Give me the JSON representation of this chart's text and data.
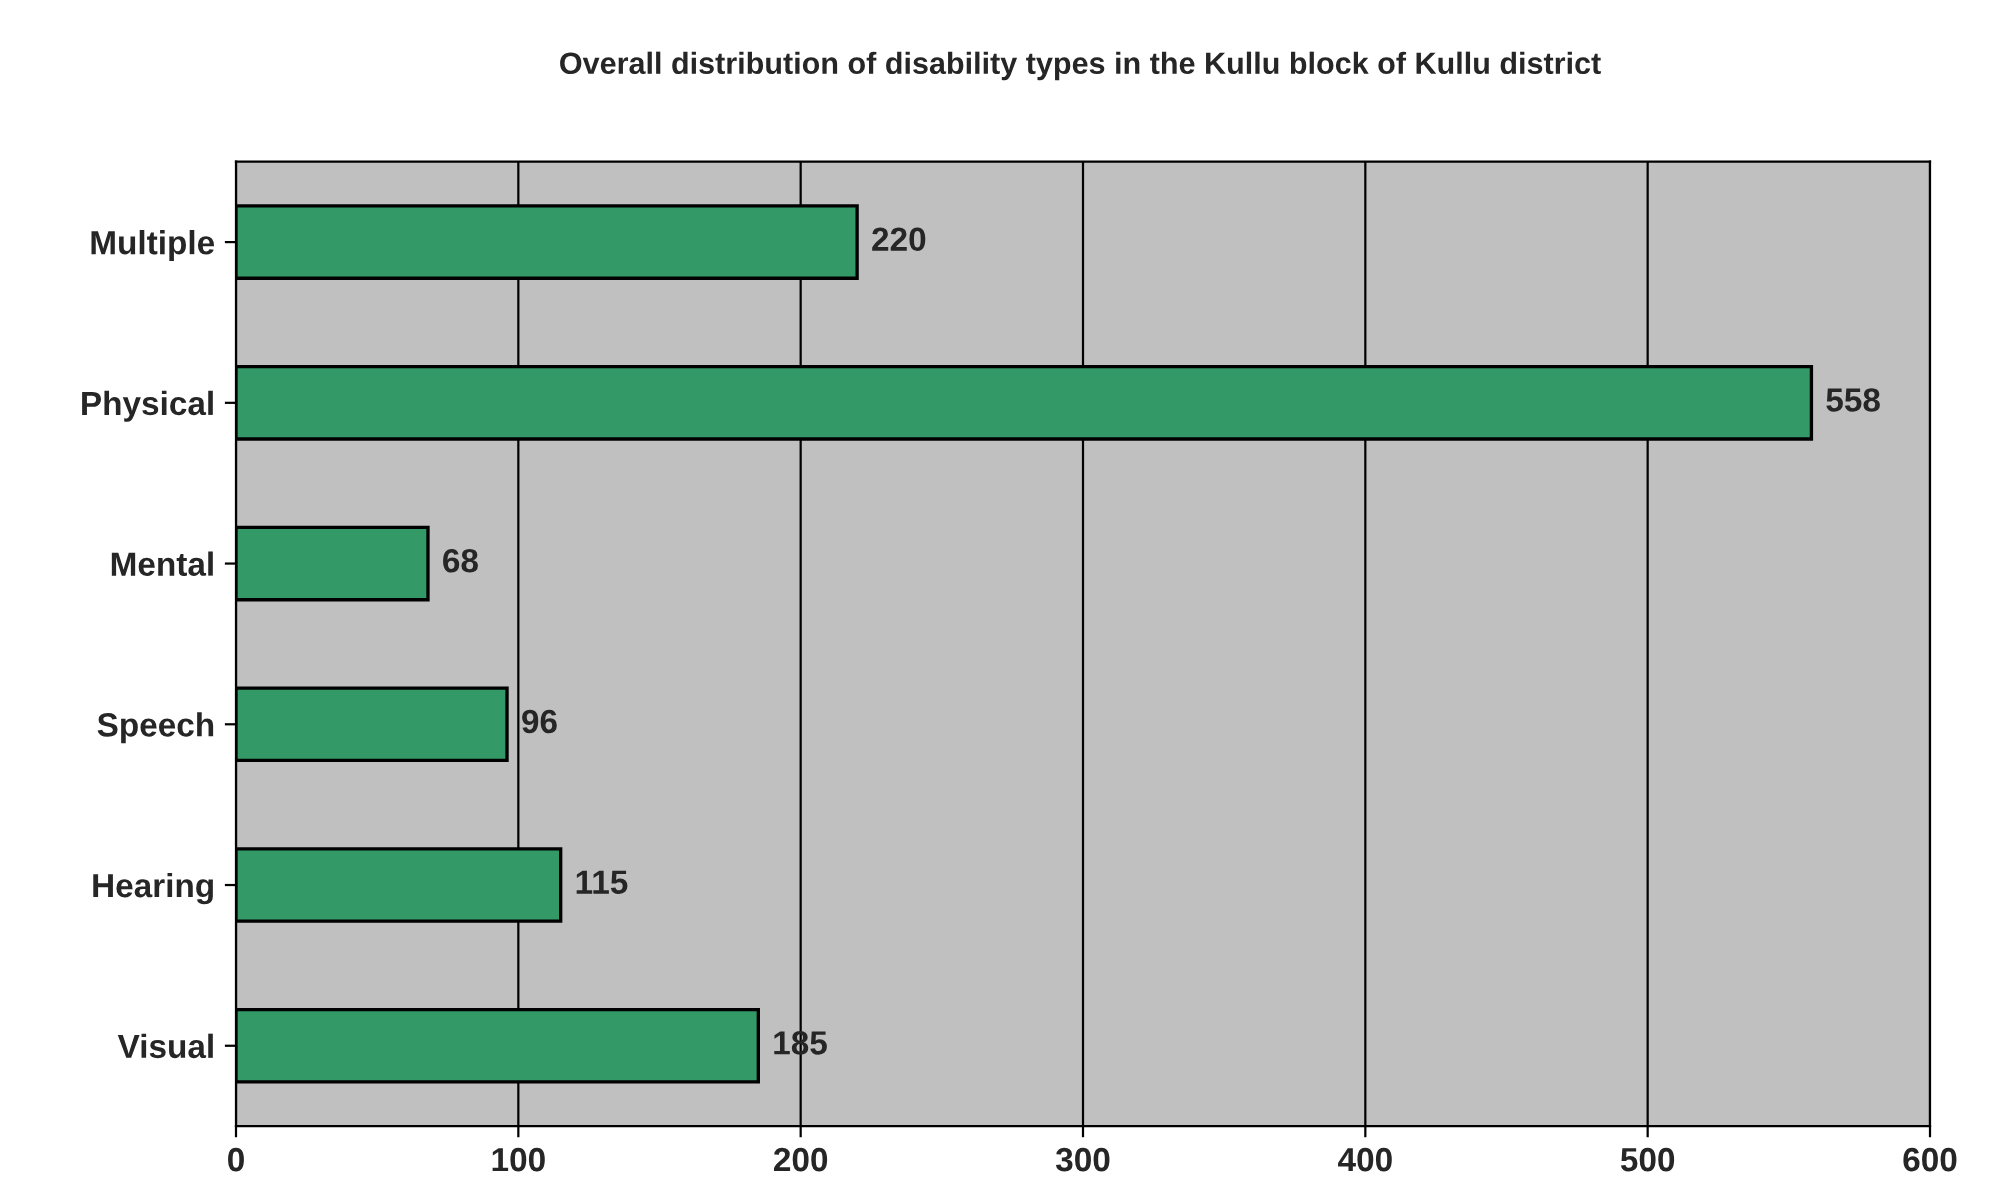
{
  "chart_data": {
    "type": "bar",
    "orientation": "horizontal",
    "title": "Overall distribution of disability types in the Kullu block of Kullu district",
    "categories": [
      "Multiple",
      "Physical",
      "Mental",
      "Speech",
      "Hearing",
      "Visual"
    ],
    "values": [
      220,
      558,
      68,
      96,
      115,
      185
    ],
    "color": "#339966",
    "xlim": [
      0,
      600
    ],
    "xticks": [
      0,
      100,
      200,
      300,
      400,
      500,
      600
    ],
    "grid": "x",
    "data_labels": true
  }
}
